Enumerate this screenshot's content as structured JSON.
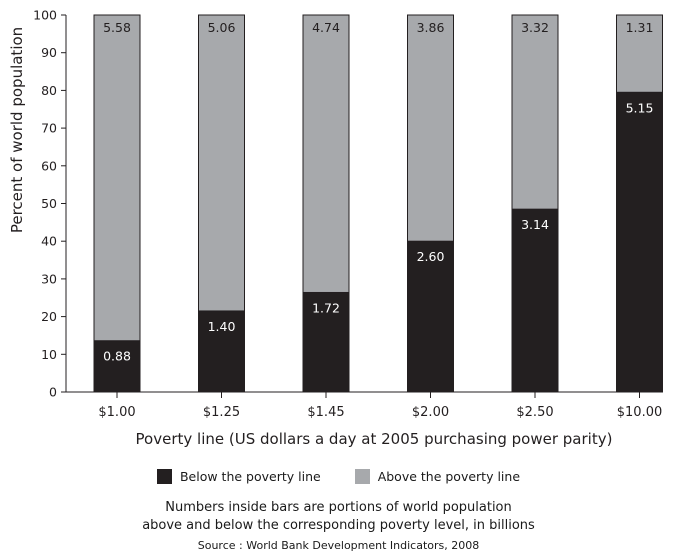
{
  "chart_data": {
    "type": "bar",
    "stacked": true,
    "categories": [
      "$1.00",
      "$1.25",
      "$1.45",
      "$2.00",
      "$2.50",
      "$10.00"
    ],
    "series": [
      {
        "name": "Below the poverty line",
        "color": "#231f20",
        "values": [
          13.6,
          21.5,
          26.4,
          40.0,
          48.5,
          79.5
        ],
        "labels": [
          "0.88",
          "1.40",
          "1.72",
          "2.60",
          "3.14",
          "5.15"
        ]
      },
      {
        "name": "Above the poverty line",
        "color": "#a7a9ac",
        "values": [
          86.4,
          78.5,
          73.6,
          60.0,
          51.5,
          20.5
        ],
        "labels": [
          "5.58",
          "5.06",
          "4.74",
          "3.86",
          "3.32",
          "1.31"
        ]
      }
    ],
    "xlabel": "Poverty line (US dollars a day at 2005 purchasing power parity)",
    "ylabel": "Percent of world population",
    "ylim": [
      0,
      100
    ],
    "yticks": [
      0,
      10,
      20,
      30,
      40,
      50,
      60,
      70,
      80,
      90,
      100
    ],
    "grid": false,
    "legend_position": "bottom"
  },
  "notes": {
    "line1": "Numbers inside bars are portions of world population",
    "line2": "above and below the corresponding poverty level, in billions",
    "source": "Source : World Bank Development Indicators, 2008"
  }
}
